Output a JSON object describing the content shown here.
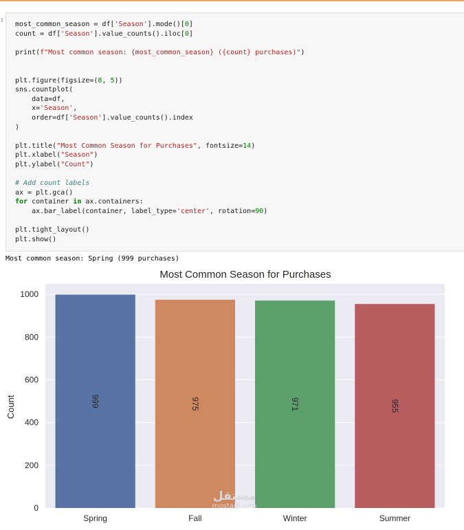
{
  "cell": {
    "prompt": ":",
    "code_lines": [
      [
        {
          "t": "most_common_season = df["
        },
        {
          "t": "'Season'",
          "c": "str"
        },
        {
          "t": "].mode()["
        },
        {
          "t": "0",
          "c": "num"
        },
        {
          "t": "]"
        }
      ],
      [
        {
          "t": "count = df["
        },
        {
          "t": "'Season'",
          "c": "str"
        },
        {
          "t": "].value_counts().iloc["
        },
        {
          "t": "0",
          "c": "num"
        },
        {
          "t": "]"
        }
      ],
      [],
      [
        {
          "t": "print("
        },
        {
          "t": "f\"Most common season: {most_common_season} ({count} purchases)\"",
          "c": "str"
        },
        {
          "t": ")"
        }
      ],
      [],
      [],
      [
        {
          "t": "plt.figure(figsize=("
        },
        {
          "t": "8",
          "c": "num"
        },
        {
          "t": ", "
        },
        {
          "t": "5",
          "c": "num"
        },
        {
          "t": "))"
        }
      ],
      [
        {
          "t": "sns.countplot("
        }
      ],
      [
        {
          "t": "    data=df,"
        }
      ],
      [
        {
          "t": "    x="
        },
        {
          "t": "'Season'",
          "c": "str"
        },
        {
          "t": ","
        }
      ],
      [
        {
          "t": "    order=df["
        },
        {
          "t": "'Season'",
          "c": "str"
        },
        {
          "t": "].value_counts().index"
        }
      ],
      [
        {
          "t": ")"
        }
      ],
      [],
      [
        {
          "t": "plt.title("
        },
        {
          "t": "\"Most Common Season for Purchases\"",
          "c": "str"
        },
        {
          "t": ", fontsize="
        },
        {
          "t": "14",
          "c": "num"
        },
        {
          "t": ")"
        }
      ],
      [
        {
          "t": "plt.xlabel("
        },
        {
          "t": "\"Season\"",
          "c": "str"
        },
        {
          "t": ")"
        }
      ],
      [
        {
          "t": "plt.ylabel("
        },
        {
          "t": "\"Count\"",
          "c": "str"
        },
        {
          "t": ")"
        }
      ],
      [],
      [
        {
          "t": "# Add count labels",
          "c": "cmt"
        }
      ],
      [
        {
          "t": "ax = plt.gca()"
        }
      ],
      [
        {
          "t": "for",
          "c": "kw"
        },
        {
          "t": " container "
        },
        {
          "t": "in",
          "c": "kw"
        },
        {
          "t": " ax.containers:"
        }
      ],
      [
        {
          "t": "    ax.bar_label(container, label_type="
        },
        {
          "t": "'center'",
          "c": "str"
        },
        {
          "t": ", rotation="
        },
        {
          "t": "90",
          "c": "num"
        },
        {
          "t": ")"
        }
      ],
      [],
      [
        {
          "t": "plt.tight_layout()"
        }
      ],
      [
        {
          "t": "plt.show()"
        }
      ]
    ]
  },
  "output": {
    "text": "Most common season: Spring (999 purchases)"
  },
  "chart_data": {
    "type": "bar",
    "title": "Most Common Season for Purchases",
    "xlabel": "",
    "ylabel": "Count",
    "categories": [
      "Spring",
      "Fall",
      "Winter",
      "Summer"
    ],
    "values": [
      999,
      975,
      971,
      955
    ],
    "bar_labels": [
      "999",
      "975",
      "971",
      "955"
    ],
    "colors": [
      "#5874a5",
      "#cf8860",
      "#5d9f6b",
      "#b75c5f"
    ],
    "ylim": [
      0,
      1049
    ],
    "yticks": [
      0,
      200,
      400,
      600,
      800,
      1000
    ],
    "grid": true,
    "background": "#eaeaf2"
  },
  "watermark": {
    "logo": "مستقل",
    "site": "mostaql.com"
  }
}
